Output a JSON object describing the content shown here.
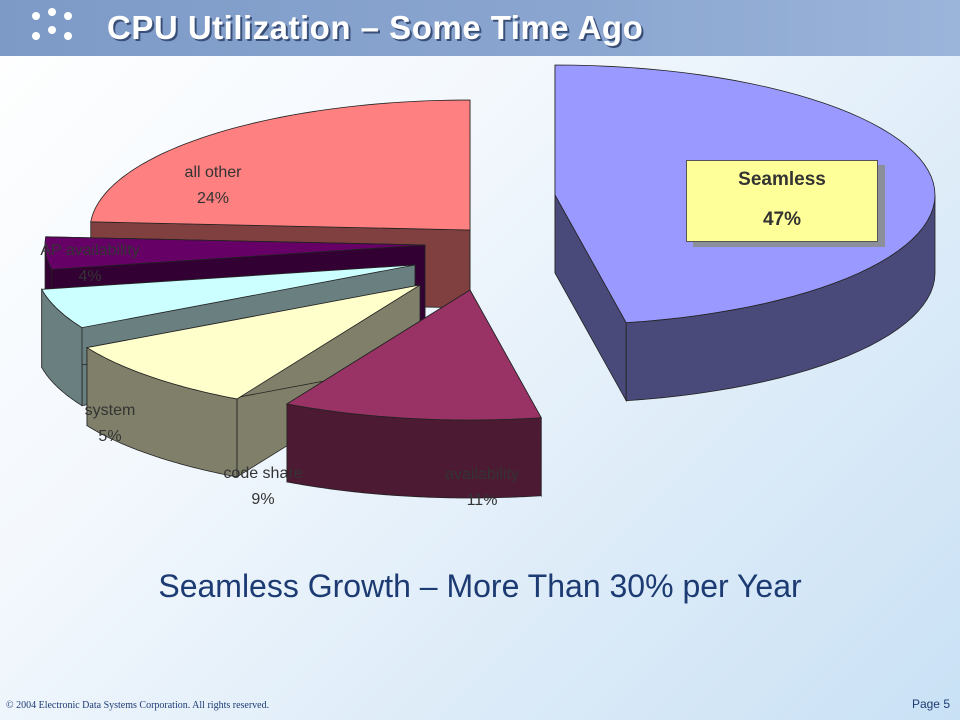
{
  "slide": {
    "title": "CPU Utilization – Some Time Ago",
    "subtitle": "Seamless Growth – More Than 30% per Year",
    "copyright": "© 2004 Electronic Data Systems Corporation. All rights reserved.",
    "page": "Page 5",
    "logo_icon": "eds-dots-logo"
  },
  "callout": {
    "name": "Seamless",
    "value": "47%"
  },
  "chart_data": {
    "type": "pie",
    "style": "3d-exploded",
    "slices": [
      {
        "label": "Seamless",
        "value": 47,
        "pct_label": "47%",
        "top_color": "#9999ff",
        "side_color": "#4a4a7a"
      },
      {
        "label": "availability",
        "value": 11,
        "pct_label": "11%",
        "top_color": "#993366",
        "side_color": "#4d1a33"
      },
      {
        "label": "code share",
        "value": 9,
        "pct_label": "9%",
        "top_color": "#ffffcc",
        "side_color": "#80806a"
      },
      {
        "label": "system",
        "value": 5,
        "pct_label": "5%",
        "top_color": "#ccffff",
        "side_color": "#6a8080"
      },
      {
        "label": "AP availability",
        "value": 4,
        "pct_label": "4%",
        "top_color": "#660066",
        "side_color": "#330033"
      },
      {
        "label": "all other",
        "value": 24,
        "pct_label": "24%",
        "top_color": "#ff8080",
        "side_color": "#804040"
      }
    ]
  }
}
